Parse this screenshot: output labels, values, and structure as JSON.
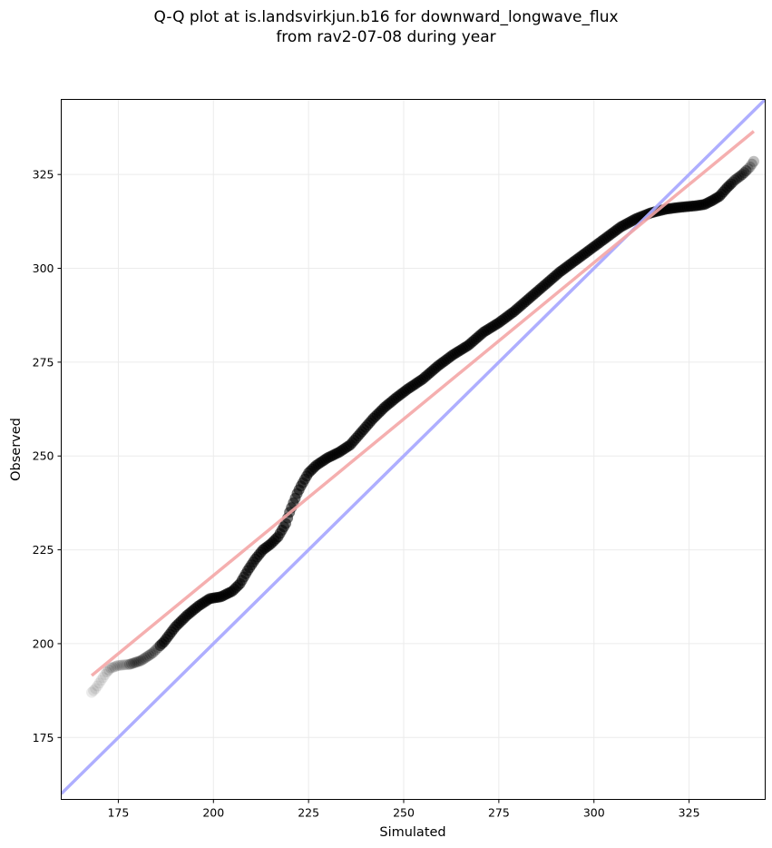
{
  "chart_data": {
    "type": "scatter",
    "title": "Q-Q plot at is.landsvirkjun.b16 for downward_longwave_flux",
    "subtitle": "from rav2-07-08 during year",
    "xlabel": "Simulated",
    "ylabel": "Observed",
    "xlim": [
      160,
      345
    ],
    "ylim": [
      158.5,
      345
    ],
    "x_ticks": [
      175,
      200,
      225,
      250,
      275,
      300,
      325
    ],
    "y_ticks": [
      175,
      200,
      225,
      250,
      275,
      300,
      325
    ],
    "grid": true,
    "identity_line": {
      "color": "#aaaaff",
      "x": [
        160,
        345
      ],
      "y": [
        160,
        345
      ]
    },
    "fit_line": {
      "color": "#f4a6a6",
      "x": [
        168,
        342
      ],
      "y": [
        191.5,
        336.5
      ]
    },
    "marker_color": "#000000",
    "quantile_curve": {
      "x": [
        168,
        169,
        170,
        171,
        172,
        173,
        175,
        178,
        181,
        184,
        187,
        190,
        193,
        196,
        199,
        202,
        205,
        207,
        209,
        211,
        213,
        215,
        217,
        219,
        220,
        221,
        222,
        223,
        224,
        225,
        227,
        230,
        233,
        236,
        239,
        242,
        245,
        248,
        251,
        255,
        259,
        263,
        267,
        271,
        275,
        279,
        283,
        287,
        291,
        295,
        299,
        303,
        307,
        311,
        315,
        319,
        323,
        325,
        327,
        329,
        331,
        333,
        335,
        337,
        339,
        341,
        342
      ],
      "y": [
        187,
        188,
        189.5,
        191,
        192.5,
        193.5,
        194.2,
        194.5,
        195.5,
        197.5,
        200.5,
        204.5,
        207.5,
        210,
        212,
        212.5,
        214,
        216,
        219.5,
        222.5,
        225,
        226.5,
        228.5,
        232,
        235,
        237.5,
        240,
        242,
        243.8,
        245.5,
        247.5,
        249.5,
        251,
        253,
        256.5,
        260,
        263,
        265.5,
        267.8,
        270.5,
        274,
        277,
        279.5,
        283,
        285.5,
        288.5,
        292,
        295.5,
        299,
        302,
        305,
        308,
        311,
        313.2,
        314.8,
        315.8,
        316.3,
        316.5,
        316.7,
        317,
        318,
        319.2,
        321.5,
        323.5,
        325,
        327,
        328.5
      ]
    }
  }
}
